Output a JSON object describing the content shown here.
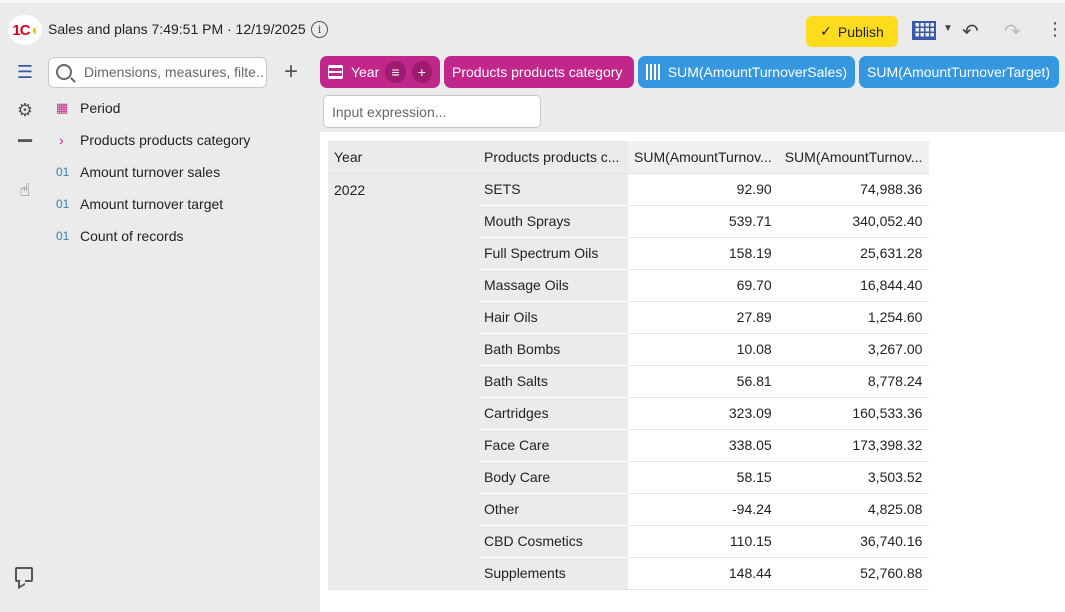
{
  "app": {
    "logo_text": "1C",
    "title": "Sales and plans 7:49:51 PM · 12/19/2025",
    "publish_label": "Publish"
  },
  "fields_panel": {
    "search_placeholder": "Dimensions, measures, filte...",
    "items": [
      {
        "kind": "date",
        "label": "Period"
      },
      {
        "kind": "group",
        "label": "Products products category"
      },
      {
        "kind": "measure",
        "tag": "01",
        "label": "Amount turnover sales"
      },
      {
        "kind": "measure",
        "tag": "01",
        "label": "Amount turnover target"
      },
      {
        "kind": "measure",
        "tag": "01",
        "label": "Count of records"
      }
    ]
  },
  "shelf": {
    "pills": [
      {
        "label": "Year",
        "color": "#c1268a"
      },
      {
        "label": "Products products category",
        "color": "#c1268a"
      },
      {
        "label": "SUM(AmountTurnoverSales)",
        "color": "#3597e0"
      },
      {
        "label": "SUM(AmountTurnoverTarget)",
        "color": "#3597e0"
      }
    ],
    "expression_placeholder": "Input expression..."
  },
  "table": {
    "headers": [
      "Year",
      "Products products c...",
      "SUM(AmountTurnov...",
      "SUM(AmountTurnov..."
    ],
    "year": "2022",
    "rows": [
      {
        "category": "SETS",
        "sales": "92.90",
        "target": "74,988.36"
      },
      {
        "category": "Mouth Sprays",
        "sales": "539.71",
        "target": "340,052.40"
      },
      {
        "category": "Full Spectrum Oils",
        "sales": "158.19",
        "target": "25,631.28"
      },
      {
        "category": "Massage Oils",
        "sales": "69.70",
        "target": "16,844.40"
      },
      {
        "category": "Hair Oils",
        "sales": "27.89",
        "target": "1,254.60"
      },
      {
        "category": "Bath Bombs",
        "sales": "10.08",
        "target": "3,267.00"
      },
      {
        "category": "Bath Salts",
        "sales": "56.81",
        "target": "8,778.24"
      },
      {
        "category": "Cartridges",
        "sales": "323.09",
        "target": "160,533.36"
      },
      {
        "category": "Face Care",
        "sales": "338.05",
        "target": "173,398.32"
      },
      {
        "category": "Body Care",
        "sales": "58.15",
        "target": "3,503.52"
      },
      {
        "category": "Other",
        "sales": "-94.24",
        "target": "4,825.08"
      },
      {
        "category": "CBD Cosmetics",
        "sales": "110.15",
        "target": "36,740.16"
      },
      {
        "category": "Supplements",
        "sales": "148.44",
        "target": "52,760.88"
      }
    ]
  },
  "icons": {
    "accent": "#3a58a8",
    "dimension_color": "#c1268a",
    "measure_color": "#3597e0",
    "publish_color": "#fddc1e"
  }
}
